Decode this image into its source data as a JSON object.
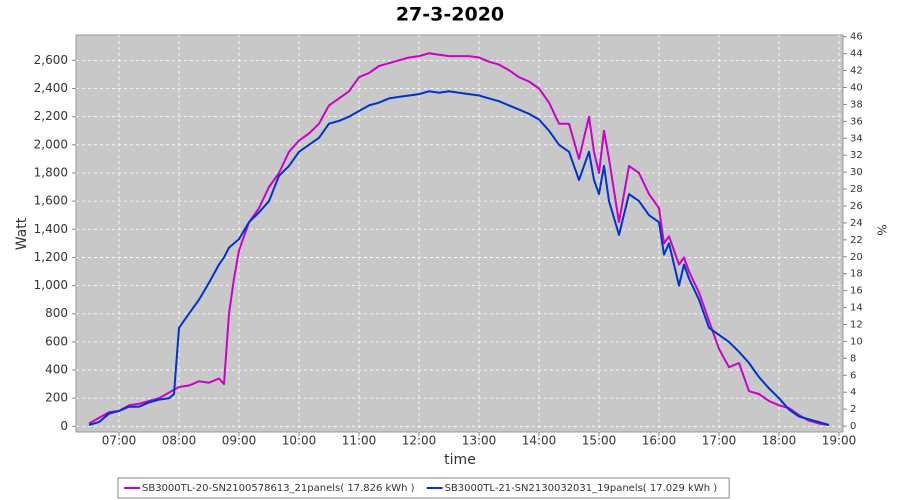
{
  "chart_data": {
    "type": "line",
    "title": "27-3-2020",
    "x_label": "time",
    "y_label": "Watt",
    "y2_label": "%",
    "x": [
      "06:30",
      "06:40",
      "06:50",
      "07:00",
      "07:10",
      "07:20",
      "07:30",
      "07:40",
      "07:50",
      "07:55",
      "08:00",
      "08:10",
      "08:20",
      "08:30",
      "08:40",
      "08:45",
      "08:50",
      "08:55",
      "09:00",
      "09:10",
      "09:20",
      "09:30",
      "09:40",
      "09:50",
      "10:00",
      "10:10",
      "10:20",
      "10:30",
      "10:40",
      "10:50",
      "11:00",
      "11:10",
      "11:20",
      "11:30",
      "11:40",
      "11:50",
      "12:00",
      "12:10",
      "12:20",
      "12:30",
      "12:40",
      "12:50",
      "13:00",
      "13:10",
      "13:20",
      "13:30",
      "13:40",
      "13:50",
      "14:00",
      "14:10",
      "14:20",
      "14:30",
      "14:40",
      "14:50",
      "14:55",
      "15:00",
      "15:05",
      "15:10",
      "15:20",
      "15:30",
      "15:40",
      "15:50",
      "16:00",
      "16:05",
      "16:10",
      "16:20",
      "16:25",
      "16:30",
      "16:40",
      "16:50",
      "17:00",
      "17:10",
      "17:20",
      "17:30",
      "17:40",
      "17:50",
      "18:00",
      "18:10",
      "18:20",
      "18:30",
      "18:40",
      "18:50"
    ],
    "series": [
      {
        "name": "SB3000TL-20-SN2100578613_21panels( 17.826 kWh )",
        "color": "#cc00cc",
        "values": [
          20,
          60,
          100,
          110,
          150,
          160,
          180,
          200,
          240,
          260,
          280,
          290,
          320,
          310,
          340,
          300,
          800,
          1050,
          1250,
          1450,
          1550,
          1700,
          1800,
          1950,
          2030,
          2080,
          2150,
          2280,
          2330,
          2380,
          2480,
          2510,
          2560,
          2580,
          2600,
          2620,
          2630,
          2650,
          2640,
          2630,
          2630,
          2630,
          2620,
          2590,
          2570,
          2530,
          2480,
          2450,
          2400,
          2300,
          2150,
          2150,
          1900,
          2200,
          1950,
          1800,
          2100,
          1900,
          1450,
          1850,
          1800,
          1650,
          1550,
          1300,
          1350,
          1150,
          1200,
          1100,
          950,
          750,
          550,
          420,
          450,
          250,
          230,
          180,
          150,
          130,
          80,
          40,
          20,
          10
        ]
      },
      {
        "name": "SB3000TL-21-SN2130032031_19panels( 17.029 kWh )",
        "color": "#0033cc",
        "values": [
          10,
          30,
          90,
          110,
          140,
          140,
          170,
          190,
          200,
          230,
          700,
          800,
          900,
          1020,
          1150,
          1200,
          1270,
          1300,
          1330,
          1450,
          1520,
          1600,
          1780,
          1850,
          1950,
          2000,
          2050,
          2150,
          2170,
          2200,
          2240,
          2280,
          2300,
          2330,
          2340,
          2350,
          2360,
          2380,
          2370,
          2380,
          2370,
          2360,
          2350,
          2330,
          2310,
          2280,
          2250,
          2220,
          2180,
          2100,
          2000,
          1950,
          1750,
          1950,
          1750,
          1650,
          1850,
          1600,
          1360,
          1650,
          1600,
          1500,
          1450,
          1220,
          1300,
          1000,
          1150,
          1050,
          900,
          700,
          650,
          600,
          530,
          450,
          350,
          270,
          200,
          120,
          70,
          50,
          30,
          10
        ]
      }
    ],
    "xlim": [
      "06:17",
      "19:04"
    ],
    "xticks": [
      "07:00",
      "08:00",
      "09:00",
      "10:00",
      "11:00",
      "12:00",
      "13:00",
      "14:00",
      "15:00",
      "16:00",
      "17:00",
      "18:00",
      "19:00"
    ],
    "ylim": [
      -40,
      2780
    ],
    "yticks": [
      0,
      200,
      400,
      600,
      800,
      {
        "value": 1000,
        "label": "1,000"
      },
      {
        "value": 1200,
        "label": "1,200"
      },
      {
        "value": 1400,
        "label": "1,400"
      },
      {
        "value": 1600,
        "label": "1,600"
      },
      {
        "value": 1800,
        "label": "1,800"
      },
      {
        "value": 2000,
        "label": "2,000"
      },
      {
        "value": 2200,
        "label": "2,200"
      },
      {
        "value": 2400,
        "label": "2,400"
      },
      {
        "value": 2600,
        "label": "2,600"
      }
    ],
    "y2lim": [
      -0.7,
      46.2
    ],
    "y2ticks": [
      0,
      2,
      4,
      6,
      8,
      10,
      12,
      14,
      16,
      18,
      20,
      22,
      24,
      26,
      28,
      30,
      32,
      34,
      36,
      38,
      40,
      42,
      44,
      46
    ],
    "grid": true
  }
}
